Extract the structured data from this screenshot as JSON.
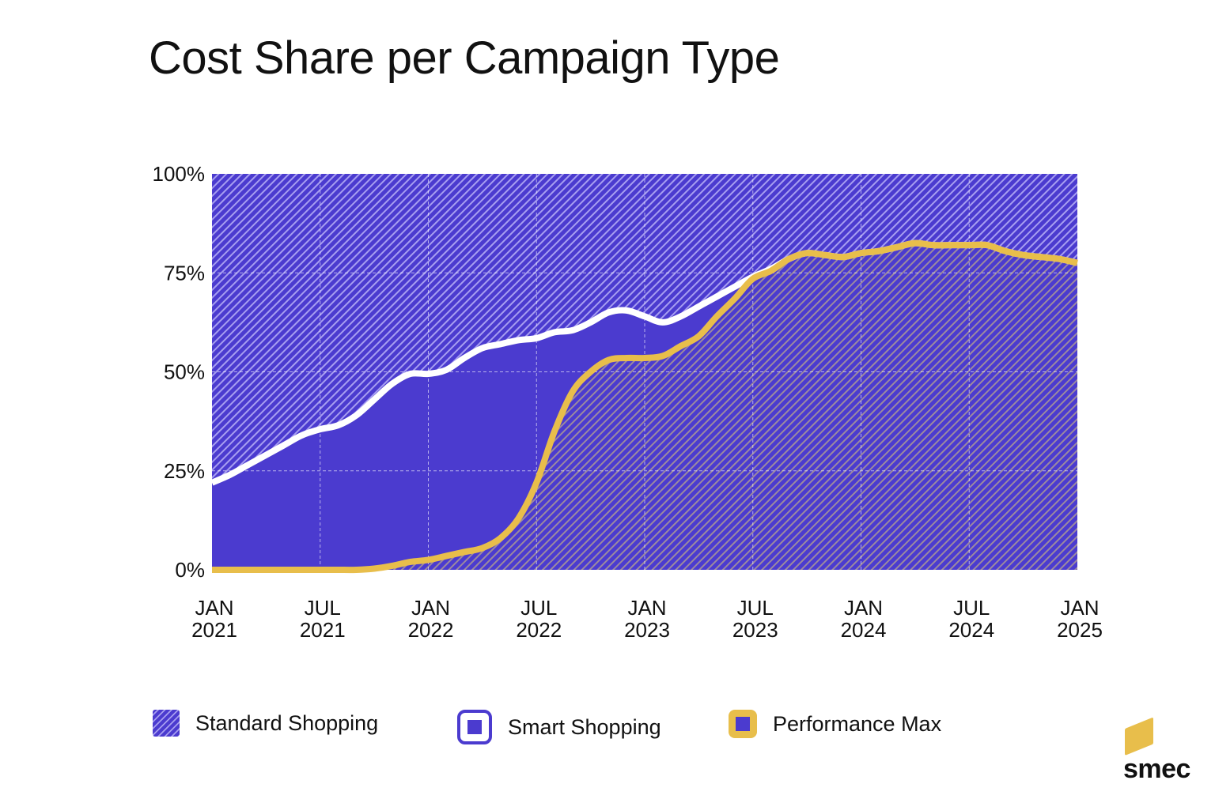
{
  "chart_data": {
    "type": "area",
    "stacked": true,
    "title": "Cost Share per Campaign Type",
    "xlabel": "",
    "ylabel": "",
    "ylim": [
      0,
      100
    ],
    "y_ticks": [
      "0%",
      "25%",
      "50%",
      "75%",
      "100%"
    ],
    "x_ticks": [
      {
        "month": "JAN",
        "year": "2021"
      },
      {
        "month": "JUL",
        "year": "2021"
      },
      {
        "month": "JAN",
        "year": "2022"
      },
      {
        "month": "JUL",
        "year": "2022"
      },
      {
        "month": "JAN",
        "year": "2023"
      },
      {
        "month": "JUL",
        "year": "2023"
      },
      {
        "month": "JAN",
        "year": "2024"
      },
      {
        "month": "JUL",
        "year": "2024"
      },
      {
        "month": "JAN",
        "year": "2025"
      }
    ],
    "grid": true,
    "legend_position": "bottom",
    "x": [
      "2021-01",
      "2021-02",
      "2021-03",
      "2021-04",
      "2021-05",
      "2021-06",
      "2021-07",
      "2021-08",
      "2021-09",
      "2021-10",
      "2021-11",
      "2021-12",
      "2022-01",
      "2022-02",
      "2022-03",
      "2022-04",
      "2022-05",
      "2022-06",
      "2022-07",
      "2022-08",
      "2022-09",
      "2022-10",
      "2022-11",
      "2022-12",
      "2023-01",
      "2023-02",
      "2023-03",
      "2023-04",
      "2023-05",
      "2023-06",
      "2023-07",
      "2023-08",
      "2023-09",
      "2023-10",
      "2023-11",
      "2023-12",
      "2024-01",
      "2024-02",
      "2024-03",
      "2024-04",
      "2024-05",
      "2024-06",
      "2024-07",
      "2024-08",
      "2024-09",
      "2024-10",
      "2024-11",
      "2024-12",
      "2025-01"
    ],
    "series": [
      {
        "name": "Performance Max",
        "color": "#E8BE4B",
        "values": [
          0,
          0,
          0,
          0,
          0,
          0,
          0,
          0,
          0,
          0.3,
          1,
          2,
          2.5,
          3.5,
          4.5,
          5.5,
          8,
          13,
          22,
          35,
          45,
          50,
          53,
          53.5,
          53.5,
          54,
          56.5,
          59,
          64,
          68.5,
          73.5,
          75.5,
          78.5,
          80,
          79.5,
          79,
          80,
          80.5,
          81.5,
          82.5,
          82,
          82,
          82,
          82,
          80.5,
          79.5,
          79,
          78.5,
          77.5
        ]
      },
      {
        "name": "Smart Shopping",
        "color": "#4B3BCF",
        "values": [
          22,
          24,
          26.5,
          29,
          31.5,
          34,
          35.5,
          36.5,
          39,
          42.7,
          46,
          47.5,
          47,
          47,
          49,
          50.5,
          49,
          45,
          36.5,
          25,
          15.5,
          12.5,
          12,
          12,
          10.5,
          8.5,
          7.5,
          7.5,
          5,
          3,
          0.5,
          0.5,
          0,
          0,
          0,
          0,
          0,
          0,
          0,
          0,
          0,
          0,
          0,
          0,
          0,
          0,
          0,
          0,
          0
        ]
      },
      {
        "name": "Standard Shopping",
        "color": "#4B3BCF",
        "pattern": "hatched",
        "values": [
          78,
          76,
          73.5,
          71,
          68.5,
          66,
          64.5,
          63.5,
          61,
          57,
          53,
          50.5,
          50.5,
          49.5,
          46.5,
          44,
          43,
          42,
          41.5,
          40,
          39.5,
          37.5,
          35,
          34.5,
          36,
          37.5,
          36,
          33.5,
          31,
          28.5,
          26,
          24,
          21.5,
          20,
          20.5,
          21,
          20,
          19.5,
          18.5,
          17.5,
          18,
          18,
          18,
          18,
          19.5,
          20.5,
          21,
          21.5,
          22.5
        ]
      }
    ]
  },
  "legend": [
    {
      "label": "Standard Shopping"
    },
    {
      "label": "Smart Shopping"
    },
    {
      "label": "Performance Max"
    }
  ],
  "logo": {
    "text": "smec"
  },
  "colors": {
    "blue": "#4B3BCF",
    "yellow": "#E8BE4B",
    "line_white": "#FFFFFF"
  }
}
